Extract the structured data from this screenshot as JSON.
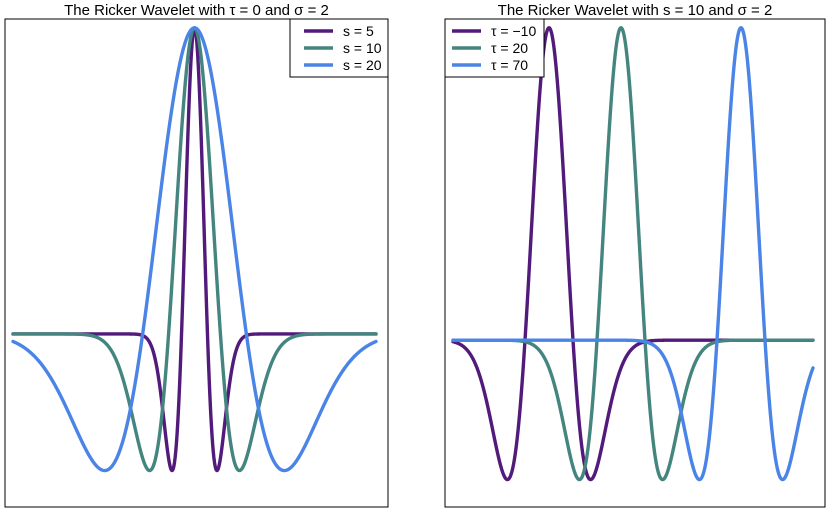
{
  "chart_data": [
    {
      "type": "line",
      "title": "The Ricker Wavelet with  τ = 0 and  σ  = 2",
      "xlabel": "",
      "ylabel": "",
      "grid": false,
      "legend_placement": "top-right",
      "xlim": [
        -70,
        70
      ],
      "ylim": [
        -1,
        1.96
      ],
      "series": [
        {
          "name": "s = 5",
          "color": "#521a7a",
          "scale": 5,
          "shift": 0
        },
        {
          "name": "s = 10",
          "color": "#44857f",
          "scale": 10,
          "shift": 0
        },
        {
          "name": "s = 20",
          "color": "#4a84e6",
          "scale": 20,
          "shift": 0
        }
      ]
    },
    {
      "type": "line",
      "title": "The Ricker Wavelet with  s = 10 and  σ  = 2",
      "xlabel": "",
      "ylabel": "",
      "grid": false,
      "legend_placement": "top-left",
      "xlim": [
        -50,
        100
      ],
      "ylim": [
        -0.94,
        1.96
      ],
      "series": [
        {
          "name": "τ = −10",
          "color": "#521a7a",
          "scale": 10,
          "shift": -10
        },
        {
          "name": "τ = 20",
          "color": "#44857f",
          "scale": 10,
          "shift": 20
        },
        {
          "name": "τ = 70",
          "color": "#4a84e6",
          "scale": 10,
          "shift": 70
        }
      ]
    }
  ]
}
